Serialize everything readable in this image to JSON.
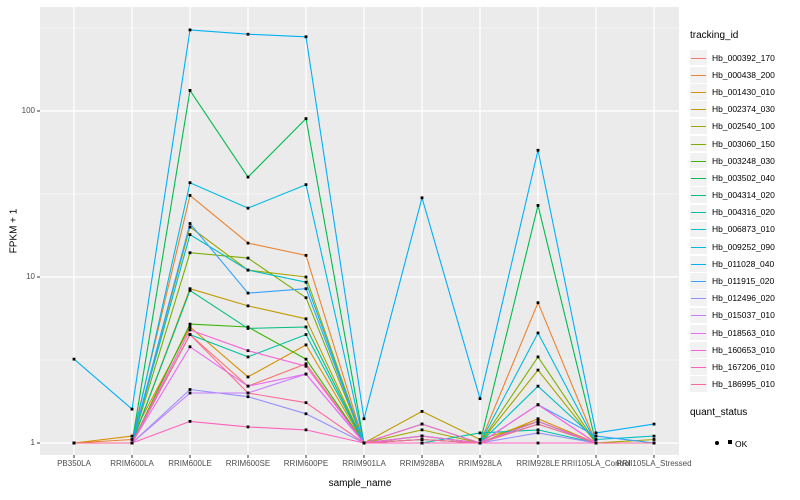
{
  "chart_data": {
    "type": "line",
    "xlabel": "sample_name",
    "ylabel": "FPKM + 1",
    "y_scale": "log10",
    "y_ticks": [
      1,
      10,
      100
    ],
    "y_minor_ticks": [
      3.162,
      31.623,
      316.228
    ],
    "panel_background": "#EBEBEB",
    "gridline_color": "#FFFFFF",
    "point_shape": "filled-square",
    "point_color": "#000000",
    "categories": [
      "PB350LA",
      "RRIM600LA",
      "RRIM600LE",
      "RRIM600SE",
      "RRIM600PE",
      "RRIM901LA",
      "RRIM928BA",
      "RRIM928LA",
      "RRIM928LE",
      "RRII105LA_Control",
      "RRII105LA_Stressed"
    ],
    "legend": {
      "color_title": "tracking_id",
      "shape_title": "quant_status",
      "shape_items": [
        {
          "label": "OK"
        }
      ]
    },
    "series": [
      {
        "name": "Hb_000392_170",
        "color": "#F8766D",
        "values": [
          1,
          1,
          4.5,
          2.2,
          3.0,
          1,
          1.1,
          1,
          1.35,
          1,
          1
        ]
      },
      {
        "name": "Hb_000438_200",
        "color": "#EA8331",
        "values": [
          1,
          1.05,
          31,
          16,
          13.5,
          1,
          1.1,
          1,
          7,
          1,
          1
        ]
      },
      {
        "name": "Hb_001430_010",
        "color": "#D89000",
        "values": [
          1,
          1.1,
          5,
          2.5,
          3.9,
          1,
          1.05,
          1,
          1.4,
          1,
          1
        ]
      },
      {
        "name": "Hb_002374_030",
        "color": "#C09B00",
        "values": [
          1,
          1,
          8.5,
          6.7,
          5.6,
          1,
          1.55,
          1.05,
          1.35,
          1,
          1
        ]
      },
      {
        "name": "Hb_002540_100",
        "color": "#A3A500",
        "values": [
          1,
          1,
          20,
          11,
          10,
          1,
          1.2,
          1,
          2.75,
          1,
          1.05
        ]
      },
      {
        "name": "Hb_003060_150",
        "color": "#7CAE00",
        "values": [
          1,
          1,
          14,
          13,
          7.5,
          1,
          1.1,
          1,
          3.3,
          1,
          1
        ]
      },
      {
        "name": "Hb_003248_030",
        "color": "#39B600",
        "values": [
          1,
          1,
          5.2,
          5,
          3.2,
          1,
          1.3,
          1,
          1.35,
          1,
          1
        ]
      },
      {
        "name": "Hb_003502_040",
        "color": "#00BB4E",
        "values": [
          1,
          1,
          133,
          40,
          90,
          1,
          1,
          1,
          27,
          1,
          1
        ]
      },
      {
        "name": "Hb_004314_020",
        "color": "#00BF7D",
        "values": [
          1,
          1,
          8.3,
          4.9,
          5.0,
          1,
          1.05,
          1,
          1.3,
          1,
          1
        ]
      },
      {
        "name": "Hb_004316_020",
        "color": "#00C1A3",
        "values": [
          1,
          1,
          4.5,
          3.3,
          4.5,
          1,
          1,
          1.15,
          1.2,
          1,
          1
        ]
      },
      {
        "name": "Hb_006873_010",
        "color": "#00BFC4",
        "values": [
          1,
          1,
          18,
          11,
          9.3,
          1,
          1,
          1,
          2.2,
          1.05,
          1.1
        ]
      },
      {
        "name": "Hb_009252_090",
        "color": "#00BAE0",
        "values": [
          1,
          1,
          37,
          26,
          36,
          1,
          1,
          1,
          4.6,
          1,
          1
        ]
      },
      {
        "name": "Hb_011028_040",
        "color": "#00B0F6",
        "values": [
          3.2,
          1.6,
          308,
          290,
          280,
          1.4,
          30,
          1.85,
          58,
          1.15,
          1.3
        ]
      },
      {
        "name": "Hb_011915_020",
        "color": "#35A2FF",
        "values": [
          1,
          1,
          21,
          8,
          8.5,
          1,
          1,
          1,
          1.7,
          1.1,
          1
        ]
      },
      {
        "name": "Hb_012496_020",
        "color": "#9590FF",
        "values": [
          1,
          1,
          2.1,
          1.9,
          1.5,
          1,
          1,
          1,
          1.15,
          1,
          1
        ]
      },
      {
        "name": "Hb_015037_010",
        "color": "#C77CFF",
        "values": [
          1,
          1,
          2.0,
          2.0,
          2.6,
          1,
          1,
          1,
          1.7,
          1,
          1
        ]
      },
      {
        "name": "Hb_018563_010",
        "color": "#E76BF3",
        "values": [
          1,
          1,
          3.8,
          2.2,
          2.6,
          1,
          1.1,
          1,
          1.35,
          1,
          1
        ]
      },
      {
        "name": "Hb_160653_010",
        "color": "#FA62DB",
        "values": [
          1,
          1,
          4.8,
          3.6,
          2.9,
          1,
          1.3,
          1,
          1.7,
          1,
          1
        ]
      },
      {
        "name": "Hb_167206_010",
        "color": "#FF62BC",
        "values": [
          1,
          1,
          1.35,
          1.25,
          1.2,
          1,
          1,
          1,
          1,
          1,
          1
        ]
      },
      {
        "name": "Hb_186995_010",
        "color": "#FF6A98",
        "values": [
          1,
          1,
          4.5,
          2.0,
          1.75,
          1,
          1.05,
          1,
          1.3,
          1,
          1
        ]
      }
    ]
  }
}
